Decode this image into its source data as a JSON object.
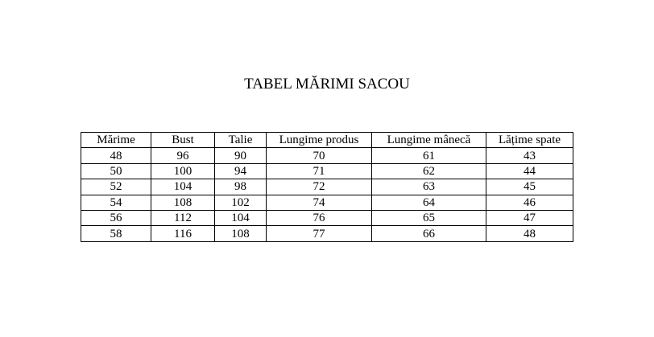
{
  "title": "TABEL MĂRIMI SACOU",
  "table": {
    "headers": [
      "Mărime",
      "Bust",
      "Talie",
      "Lungime produs",
      "Lungime mânecă",
      "Lățime spate"
    ],
    "rows": [
      [
        "48",
        "96",
        "90",
        "70",
        "61",
        "43"
      ],
      [
        "50",
        "100",
        "94",
        "71",
        "62",
        "44"
      ],
      [
        "52",
        "104",
        "98",
        "72",
        "63",
        "45"
      ],
      [
        "54",
        "108",
        "102",
        "74",
        "64",
        "46"
      ],
      [
        "56",
        "112",
        "104",
        "76",
        "65",
        "47"
      ],
      [
        "58",
        "116",
        "108",
        "77",
        "66",
        "48"
      ]
    ]
  }
}
